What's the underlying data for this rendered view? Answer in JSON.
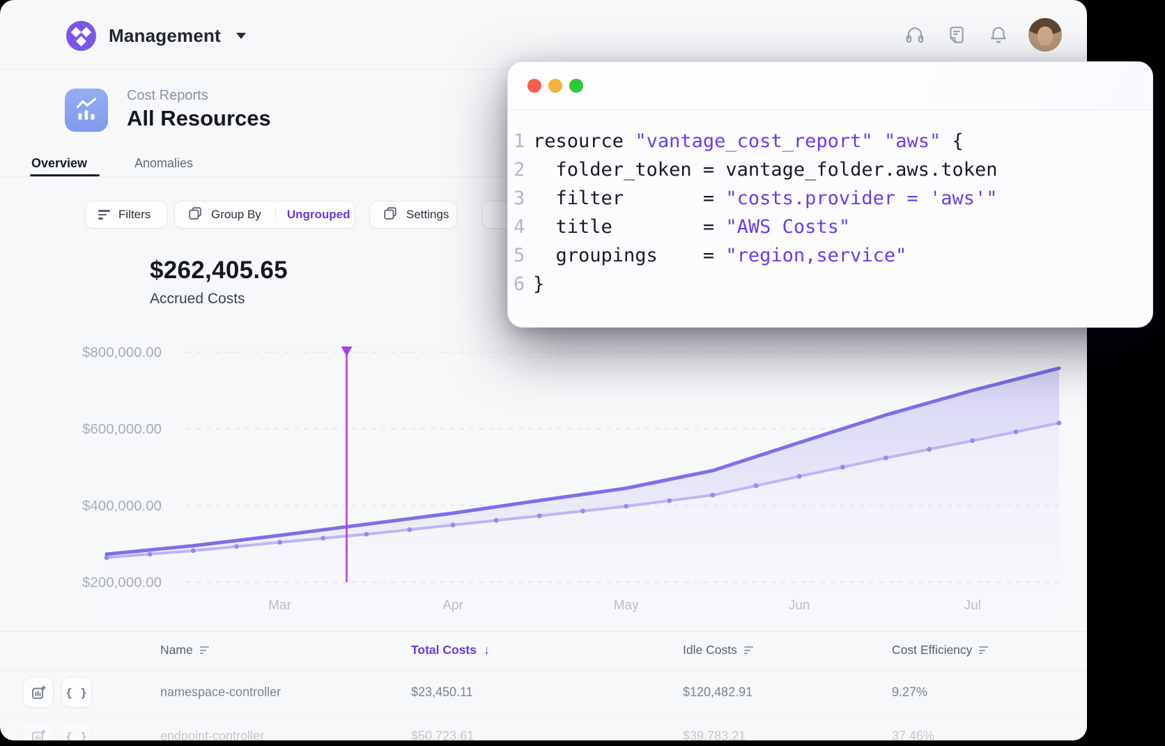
{
  "brand": {
    "name": "Management"
  },
  "page": {
    "breadcrumb": "Cost Reports",
    "title": "All Resources",
    "tabs": [
      {
        "label": "Overview",
        "active": true
      },
      {
        "label": "Anomalies",
        "active": false
      }
    ]
  },
  "toolbar": {
    "filters_label": "Filters",
    "group_by_label": "Group By",
    "group_value": "Ungrouped",
    "settings_label": "Settings"
  },
  "summary": {
    "amount": "$262,405.65",
    "label": "Accrued Costs"
  },
  "chart_data": {
    "type": "area",
    "title": "",
    "xlabel": "",
    "ylabel": "",
    "unit": "USD",
    "ylim": [
      200000,
      800000
    ],
    "y_tick_values": [
      800000,
      600000,
      400000,
      200000
    ],
    "y_tick_labels": [
      "$800,000.00",
      "$600,000.00",
      "$400,000.00",
      "$200,000.00"
    ],
    "grid": "dashed-horizontal",
    "months": [
      "Mar",
      "Apr",
      "May",
      "Jun",
      "Jul"
    ],
    "month_point_indices": [
      2,
      4,
      6,
      8,
      10
    ],
    "series": [
      {
        "name": "primary",
        "color": "#7b6fe9",
        "values": [
          273000,
          295000,
          322000,
          351000,
          380000,
          413000,
          445000,
          491000,
          564000,
          636000,
          700000,
          758000
        ]
      },
      {
        "name": "secondary",
        "color": "#bdb5f6",
        "dot_color": "#918af0",
        "values": [
          264000,
          282000,
          304000,
          325000,
          349000,
          373000,
          398000,
          427000,
          476000,
          524000,
          569000,
          615000
        ]
      }
    ],
    "cursor": {
      "position_fraction": 0.252,
      "color": "#ac3bee",
      "style": "vertical-line-with-triangle"
    },
    "legend": "none"
  },
  "code_window": {
    "traffic_lights": [
      "close",
      "minimize",
      "zoom"
    ],
    "lines": [
      {
        "n": "1",
        "segments": [
          {
            "text": "resource ",
            "type": "plain"
          },
          {
            "text": "\"vantage_cost_report\"",
            "type": "string"
          },
          {
            "text": " ",
            "type": "plain"
          },
          {
            "text": "\"aws\"",
            "type": "string"
          },
          {
            "text": " {",
            "type": "plain"
          }
        ]
      },
      {
        "n": "2",
        "segments": [
          {
            "text": "  folder_token = vantage_folder.aws.token",
            "type": "plain"
          }
        ]
      },
      {
        "n": "3",
        "segments": [
          {
            "text": "  filter       = ",
            "type": "plain"
          },
          {
            "text": "\"costs.provider = 'aws'\"",
            "type": "string"
          }
        ]
      },
      {
        "n": "4",
        "segments": [
          {
            "text": "  title        = ",
            "type": "plain"
          },
          {
            "text": "\"AWS Costs\"",
            "type": "string"
          }
        ]
      },
      {
        "n": "5",
        "segments": [
          {
            "text": "  groupings    = ",
            "type": "plain"
          },
          {
            "text": "\"region,service\"",
            "type": "string"
          }
        ]
      },
      {
        "n": "6",
        "segments": [
          {
            "text": "}",
            "type": "plain"
          }
        ]
      }
    ]
  },
  "table": {
    "sort_arrow": "↓",
    "braces_glyph": "{ }",
    "columns": [
      {
        "label": "Name",
        "sortable": true
      },
      {
        "label": "Total Costs",
        "sorted": "desc"
      },
      {
        "label": "Idle Costs",
        "sortable": true
      },
      {
        "label": "Cost Efficiency",
        "sortable": true
      }
    ],
    "rows": [
      {
        "name": "namespace-controller",
        "total_costs": "$23,450.11",
        "idle_costs": "$120,482.91",
        "cost_efficiency": "9.27%"
      },
      {
        "name": "endpoint-controller",
        "total_costs": "$50,723.61",
        "idle_costs": "$39,783.21",
        "cost_efficiency": "37.46%"
      }
    ]
  },
  "colors": {
    "accent_purple": "#6b3beb",
    "logo_purple": "#7b55e6",
    "tile_blue": "#8ca4f1",
    "traffic_red": "#f8604d",
    "traffic_yellow": "#f6b03e",
    "traffic_green": "#2fc938",
    "app_background": "#f7f8fa"
  }
}
